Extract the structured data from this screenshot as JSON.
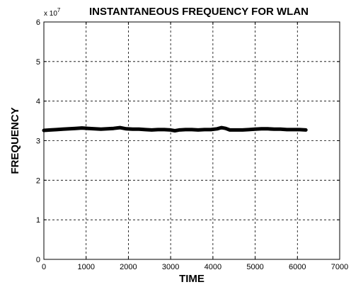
{
  "chart_data": {
    "type": "line",
    "title": "INSTANTANEOUS FREQUENCY FOR WLAN",
    "xlabel": "TIME",
    "ylabel": "FREQUENCY",
    "y_scale_multiplier_base": "x 10",
    "y_scale_multiplier_exp": "7",
    "xlim": [
      0,
      7000
    ],
    "ylim": [
      0,
      6
    ],
    "x_ticks": [
      0,
      1000,
      2000,
      3000,
      4000,
      5000,
      6000,
      7000
    ],
    "y_ticks": [
      0,
      1,
      2,
      3,
      4,
      5,
      6
    ],
    "x_tick_labels": [
      "0",
      "1000",
      "2000",
      "3000",
      "4000",
      "5000",
      "6000",
      "7000"
    ],
    "y_tick_labels": [
      "0",
      "1",
      "2",
      "3",
      "4",
      "5",
      "6"
    ],
    "grid": true,
    "series": [
      {
        "color": "#000000",
        "x": [
          0,
          150,
          300,
          450,
          600,
          750,
          900,
          1050,
          1200,
          1350,
          1500,
          1650,
          1800,
          1950,
          2100,
          2250,
          2400,
          2550,
          2700,
          2850,
          3000,
          3100,
          3200,
          3350,
          3500,
          3650,
          3800,
          3950,
          4100,
          4200,
          4300,
          4400,
          4550,
          4700,
          4850,
          5000,
          5150,
          5300,
          5450,
          5600,
          5750,
          5900,
          6050,
          6200
        ],
        "y": [
          3.26,
          3.27,
          3.28,
          3.29,
          3.3,
          3.31,
          3.32,
          3.31,
          3.3,
          3.29,
          3.3,
          3.31,
          3.33,
          3.3,
          3.29,
          3.29,
          3.28,
          3.27,
          3.28,
          3.28,
          3.27,
          3.25,
          3.27,
          3.28,
          3.28,
          3.27,
          3.28,
          3.28,
          3.3,
          3.33,
          3.31,
          3.27,
          3.27,
          3.27,
          3.28,
          3.29,
          3.3,
          3.3,
          3.29,
          3.29,
          3.28,
          3.28,
          3.28,
          3.27
        ]
      }
    ]
  }
}
